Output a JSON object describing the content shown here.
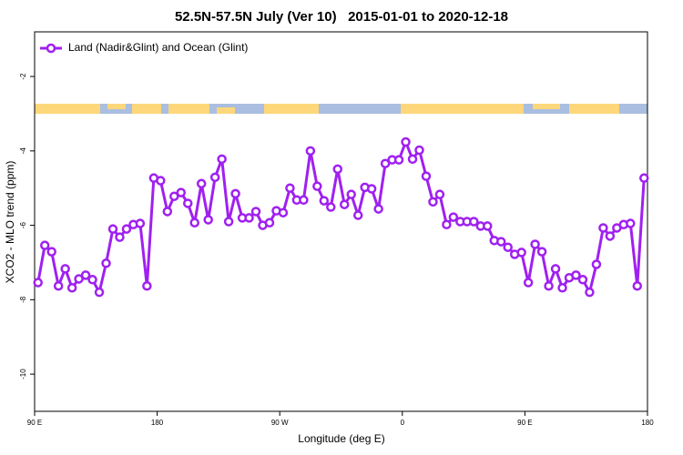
{
  "chart_data": {
    "type": "line",
    "title": "52.5N-57.5N July (Ver 10)   2015-01-01 to 2020-12-18",
    "xlabel": "Longitude (deg E)",
    "ylabel": "XCO2 - MLO trend (ppm)",
    "x": [
      92.5,
      97.5,
      102.5,
      107.5,
      112.5,
      117.5,
      122.5,
      127.5,
      132.5,
      137.5,
      142.5,
      147.5,
      152.5,
      157.5,
      162.5,
      167.5,
      172.5,
      177.5,
      182.5,
      187.5,
      192.5,
      197.5,
      202.5,
      207.5,
      212.5,
      217.5,
      222.5,
      227.5,
      232.5,
      237.5,
      242.5,
      247.5,
      252.5,
      257.5,
      262.5,
      267.5,
      272.5,
      277.5,
      282.5,
      287.5,
      292.5,
      297.5,
      302.5,
      307.5,
      312.5,
      317.5,
      322.5,
      327.5,
      332.5,
      337.5,
      342.5,
      347.5,
      352.5,
      357.5,
      362.5,
      367.5,
      372.5,
      377.5,
      382.5,
      387.5,
      392.5,
      397.5,
      402.5,
      407.5,
      412.5,
      417.5,
      422.5,
      427.5,
      432.5,
      437.5,
      442.5,
      447.5,
      452.5,
      457.5,
      462.5,
      467.5,
      472.5,
      477.5,
      482.5,
      487.5,
      492.5,
      497.5,
      502.5,
      507.5,
      512.5,
      517.5,
      522.5,
      527.5,
      532.5,
      537.5
    ],
    "series": [
      {
        "name": "Land (Nadir&Glint) and Ocean (Glint)",
        "color": "#a020f0",
        "values": [
          -7.54,
          -6.54,
          -6.71,
          -7.63,
          -7.17,
          -7.68,
          -7.44,
          -7.34,
          -7.46,
          -7.8,
          -7.02,
          -6.1,
          -6.32,
          -6.1,
          -5.98,
          -5.95,
          -7.63,
          -4.73,
          -4.8,
          -5.63,
          -5.22,
          -5.12,
          -5.41,
          -5.93,
          -4.88,
          -5.85,
          -4.71,
          -4.22,
          -5.9,
          -5.15,
          -5.8,
          -5.8,
          -5.63,
          -6.0,
          -5.93,
          -5.61,
          -5.66,
          -5.0,
          -5.32,
          -5.32,
          -4.0,
          -4.95,
          -5.34,
          -5.51,
          -4.49,
          -5.44,
          -5.17,
          -5.73,
          -4.98,
          -5.02,
          -5.56,
          -4.34,
          -4.24,
          -4.24,
          -3.76,
          -4.22,
          -3.98,
          -4.68,
          -5.37,
          -5.17,
          -5.98,
          -5.78,
          -5.9,
          -5.9,
          -5.9,
          -6.02,
          -6.02,
          -6.41,
          -6.44,
          -6.59,
          -6.78,
          -6.73,
          -7.54,
          -6.51,
          -6.71,
          -7.63,
          -7.17,
          -7.68,
          -7.41,
          -7.34,
          -7.46,
          -7.8,
          -7.05,
          -6.07,
          -6.29,
          -6.07,
          -5.98,
          -5.95,
          -7.63,
          -4.73
        ]
      }
    ],
    "xlim": [
      90,
      540
    ],
    "xticks": [
      {
        "value": 90,
        "label": "90 E"
      },
      180,
      {
        "value": 270,
        "label": "90 W"
      },
      {
        "value": 360,
        "label": "0"
      },
      {
        "value": 450,
        "label": "90 E"
      },
      {
        "value": 540,
        "label": "180"
      }
    ],
    "ylim": [
      -11,
      -0.8
    ],
    "yticks": [
      -2,
      -4,
      -6,
      -8,
      -10
    ],
    "legend": "top-left"
  }
}
